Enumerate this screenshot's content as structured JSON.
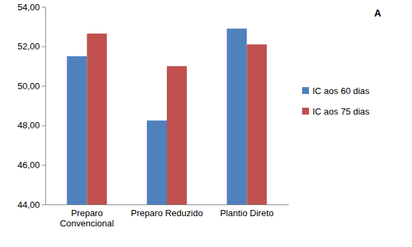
{
  "chart_data": {
    "type": "bar",
    "categories": [
      "Preparo Convencional",
      "Preparo Reduzido",
      "Plantio Direto"
    ],
    "series": [
      {
        "name": "IC aos 60 dias",
        "color": "#4f81bd",
        "values": [
          51.5,
          48.25,
          52.9
        ]
      },
      {
        "name": "IC aos 75 dias",
        "color": "#c0504d",
        "values": [
          52.65,
          51.0,
          52.1
        ]
      }
    ],
    "ylim": [
      44,
      54
    ],
    "yticks": [
      {
        "value": 44,
        "label": "44,00"
      },
      {
        "value": 46,
        "label": "46,00"
      },
      {
        "value": 48,
        "label": "48,00"
      },
      {
        "value": 50,
        "label": "50,00"
      },
      {
        "value": 52,
        "label": "52,00"
      },
      {
        "value": 54,
        "label": "54,00"
      }
    ],
    "grid": false,
    "legend": "right",
    "annotations": [
      "A"
    ]
  }
}
